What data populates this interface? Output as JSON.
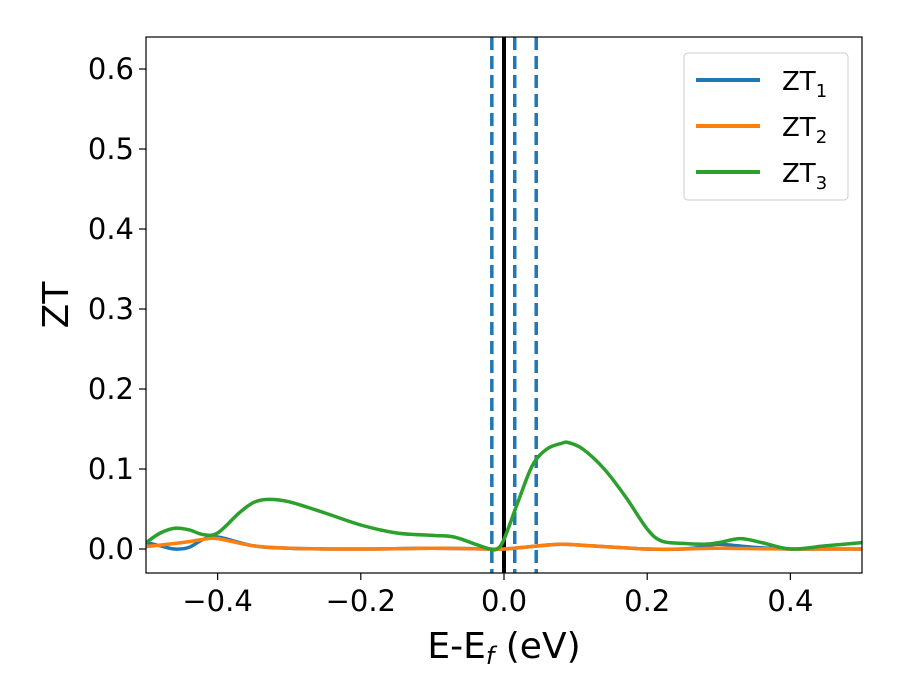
{
  "chart_data": {
    "type": "line",
    "title": "",
    "xlabel": "E-E",
    "xlabel_sub": "f",
    "xlabel_unit": " (eV)",
    "ylabel": "ZT",
    "xlim": [
      -0.5,
      0.5
    ],
    "ylim": [
      -0.03,
      0.64
    ],
    "xticks": [
      -0.4,
      -0.2,
      0.0,
      0.2,
      0.4
    ],
    "xtick_labels": [
      "−0.4",
      "−0.2",
      "0.0",
      "0.2",
      "0.4"
    ],
    "yticks": [
      0.0,
      0.1,
      0.2,
      0.3,
      0.4,
      0.5,
      0.6
    ],
    "ytick_labels": [
      "0.0",
      "0.1",
      "0.2",
      "0.3",
      "0.4",
      "0.5",
      "0.6"
    ],
    "grid": false,
    "legend_position": "top-right",
    "series": [
      {
        "name": "ZT",
        "name_sub": "1",
        "color": "#1f77b4",
        "x": [
          -0.5,
          -0.48,
          -0.46,
          -0.44,
          -0.42,
          -0.4,
          -0.35,
          -0.3,
          -0.2,
          -0.1,
          -0.02,
          0.0,
          0.05,
          0.08,
          0.12,
          0.2,
          0.25,
          0.28,
          0.3,
          0.35,
          0.4,
          0.45,
          0.5
        ],
        "y": [
          0.008,
          0.004,
          0.0,
          0.002,
          0.012,
          0.015,
          0.004,
          0.001,
          0.0,
          0.001,
          0.0,
          0.0,
          0.004,
          0.006,
          0.004,
          0.0,
          0.0,
          0.003,
          0.006,
          0.002,
          0.0,
          0.0,
          0.0
        ]
      },
      {
        "name": "ZT",
        "name_sub": "2",
        "color": "#ff7f0e",
        "x": [
          -0.5,
          -0.45,
          -0.42,
          -0.4,
          -0.35,
          -0.3,
          -0.2,
          -0.1,
          -0.02,
          0.0,
          0.05,
          0.08,
          0.12,
          0.2,
          0.25,
          0.3,
          0.4,
          0.5
        ],
        "y": [
          0.003,
          0.008,
          0.012,
          0.013,
          0.004,
          0.001,
          0.0,
          0.001,
          0.0,
          0.0,
          0.004,
          0.006,
          0.004,
          0.0,
          0.0,
          0.001,
          0.0,
          0.0
        ]
      },
      {
        "name": "ZT",
        "name_sub": "3",
        "color": "#2ca02c",
        "x": [
          -0.5,
          -0.48,
          -0.46,
          -0.44,
          -0.42,
          -0.4,
          -0.37,
          -0.35,
          -0.33,
          -0.3,
          -0.25,
          -0.2,
          -0.15,
          -0.1,
          -0.07,
          -0.04,
          -0.02,
          -0.01,
          0.0,
          0.02,
          0.04,
          0.06,
          0.08,
          0.09,
          0.11,
          0.14,
          0.17,
          0.2,
          0.22,
          0.25,
          0.28,
          0.3,
          0.33,
          0.36,
          0.4,
          0.45,
          0.5
        ],
        "y": [
          0.008,
          0.02,
          0.026,
          0.024,
          0.018,
          0.02,
          0.045,
          0.058,
          0.062,
          0.059,
          0.045,
          0.03,
          0.02,
          0.017,
          0.015,
          0.006,
          0.0,
          0.0,
          0.012,
          0.06,
          0.105,
          0.125,
          0.132,
          0.133,
          0.125,
          0.1,
          0.065,
          0.025,
          0.01,
          0.007,
          0.006,
          0.008,
          0.013,
          0.008,
          0.0,
          0.004,
          0.008
        ]
      }
    ],
    "reference_lines": [
      {
        "x": -0.017,
        "style": "dashed",
        "color": "#1f77b4"
      },
      {
        "x": 0.0,
        "style": "solid",
        "color": "#000000"
      },
      {
        "x": 0.015,
        "style": "dashed",
        "color": "#1f77b4"
      },
      {
        "x": 0.045,
        "style": "dashed",
        "color": "#1f77b4"
      }
    ]
  }
}
